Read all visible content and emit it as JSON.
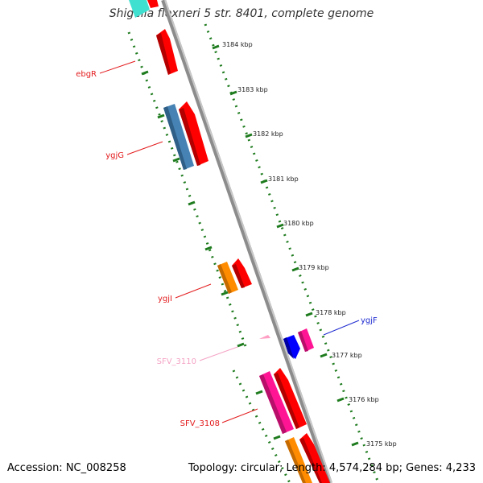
{
  "title": "Shigella flexneri 5 str. 8401, complete genome",
  "footer": {
    "accession": "Accession: NC_008258",
    "summary": "Topology: circular; Length: 4,574,284 bp; Genes: 4,233"
  },
  "scale_ticks": [
    "3184 kbp",
    "3183 kbp",
    "3182 kbp",
    "3181 kbp",
    "3180 kbp",
    "3179 kbp",
    "3178 kbp",
    "3177 kbp",
    "3176 kbp",
    "3175 kbp"
  ],
  "gene_labels": [
    {
      "name": "ebgR",
      "color": "#e31a1c"
    },
    {
      "name": "ygjG",
      "color": "#e31a1c"
    },
    {
      "name": "ygjI",
      "color": "#e31a1c"
    },
    {
      "name": "SFV_3110",
      "color": "#f4a3c4"
    },
    {
      "name": "SFV_3108",
      "color": "#e31a1c"
    },
    {
      "name": "ygjF",
      "color": "#1f2bd0"
    }
  ],
  "colors": {
    "backbone": "#8c8c8c",
    "tick_track": "#1e7b1e",
    "red": "#ff0000",
    "steelblue": "#4682b4",
    "orange": "#ff8c00",
    "pink": "#ff1493",
    "lightpink": "#ff9ec4",
    "blue": "#0000ff",
    "cyan": "#40e0d0"
  }
}
